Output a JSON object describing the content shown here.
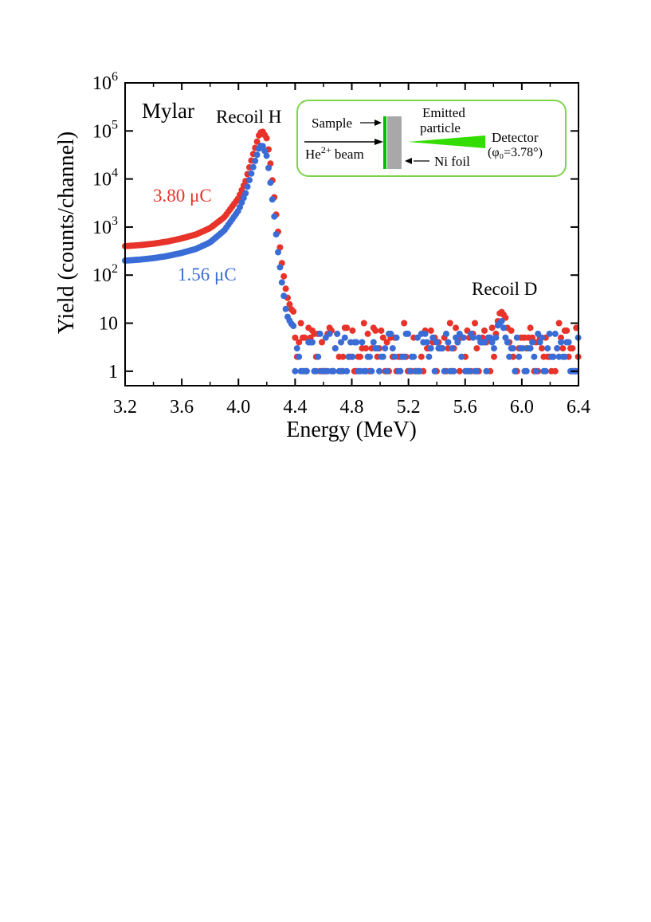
{
  "chart_data": {
    "type": "scatter",
    "title": "",
    "xlabel": "Energy (MeV)",
    "ylabel": "Yield (counts/channel)",
    "xlim": [
      3.2,
      6.4
    ],
    "ylim": [
      0.5,
      1000000
    ],
    "yscale": "log",
    "xticks": [
      3.2,
      3.6,
      4.0,
      4.4,
      4.8,
      5.2,
      5.6,
      6.0,
      6.4
    ],
    "xtick_labels": [
      "3.2",
      "3.6",
      "4.0",
      "4.4",
      "4.8",
      "5.2",
      "5.6",
      "6.0",
      "6.4"
    ],
    "yticks": [
      {
        "value": 1,
        "base": "1",
        "exp": ""
      },
      {
        "value": 10,
        "base": "10",
        "exp": ""
      },
      {
        "value": 100,
        "base": "10",
        "exp": "2"
      },
      {
        "value": 1000,
        "base": "10",
        "exp": "3"
      },
      {
        "value": 10000,
        "base": "10",
        "exp": "4"
      },
      {
        "value": 100000,
        "base": "10",
        "exp": "5"
      },
      {
        "value": 1000000,
        "base": "10",
        "exp": "6"
      }
    ],
    "grid": false,
    "annotations": {
      "sample": "Mylar",
      "peak_h": "Recoil H",
      "peak_d": "Recoil D"
    },
    "series": [
      {
        "name": "3.80 μC",
        "color": "#e8332a",
        "profile": [
          [
            3.2,
            400
          ],
          [
            3.3,
            420
          ],
          [
            3.4,
            450
          ],
          [
            3.5,
            500
          ],
          [
            3.6,
            580
          ],
          [
            3.7,
            700
          ],
          [
            3.8,
            950
          ],
          [
            3.9,
            1600
          ],
          [
            4.0,
            4000
          ],
          [
            4.05,
            9000
          ],
          [
            4.1,
            30000
          ],
          [
            4.15,
            90000
          ],
          [
            4.17,
            98000
          ],
          [
            4.2,
            70000
          ],
          [
            4.22,
            30000
          ],
          [
            4.25,
            5000
          ],
          [
            4.28,
            800
          ],
          [
            4.31,
            150
          ],
          [
            4.34,
            40
          ],
          [
            4.37,
            20
          ],
          [
            4.4,
            16
          ]
        ],
        "noise": {
          "x_start": 4.4,
          "x_end": 6.4,
          "step": 0.0135,
          "levels": [
            1,
            2,
            3,
            4,
            5,
            6,
            7,
            8,
            10
          ],
          "peak": {
            "x": 5.86,
            "height": 20,
            "width": 0.04
          }
        }
      },
      {
        "name": "1.56 μC",
        "color": "#3a6cd6",
        "profile": [
          [
            3.2,
            200
          ],
          [
            3.3,
            210
          ],
          [
            3.4,
            225
          ],
          [
            3.5,
            250
          ],
          [
            3.6,
            290
          ],
          [
            3.7,
            350
          ],
          [
            3.8,
            480
          ],
          [
            3.9,
            850
          ],
          [
            4.0,
            2200
          ],
          [
            4.05,
            5000
          ],
          [
            4.1,
            16000
          ],
          [
            4.15,
            48000
          ],
          [
            4.17,
            50000
          ],
          [
            4.2,
            30000
          ],
          [
            4.22,
            12000
          ],
          [
            4.25,
            2000
          ],
          [
            4.28,
            300
          ],
          [
            4.31,
            60
          ],
          [
            4.34,
            15
          ],
          [
            4.37,
            10
          ],
          [
            4.4,
            8
          ]
        ],
        "noise": {
          "x_start": 4.4,
          "x_end": 6.4,
          "step": 0.0135,
          "levels": [
            1,
            2,
            3,
            4,
            5,
            6
          ],
          "peak": {
            "x": 5.85,
            "height": 13,
            "width": 0.04
          }
        }
      }
    ],
    "inset": {
      "sample_label": "Sample",
      "beam_label": "He",
      "beam_sup": "2+",
      "beam_suffix": " beam",
      "emitted_label_1": "Emitted",
      "emitted_label_2": "particle",
      "foil_label": "Ni foil",
      "detector_label": "Detector",
      "angle_label": "(φ₀=3.78°)",
      "border_color": "#7fd34b",
      "detector_color": "#33dd00",
      "sample_color": "#00c000",
      "foil_color": "#a8a8a8"
    }
  }
}
